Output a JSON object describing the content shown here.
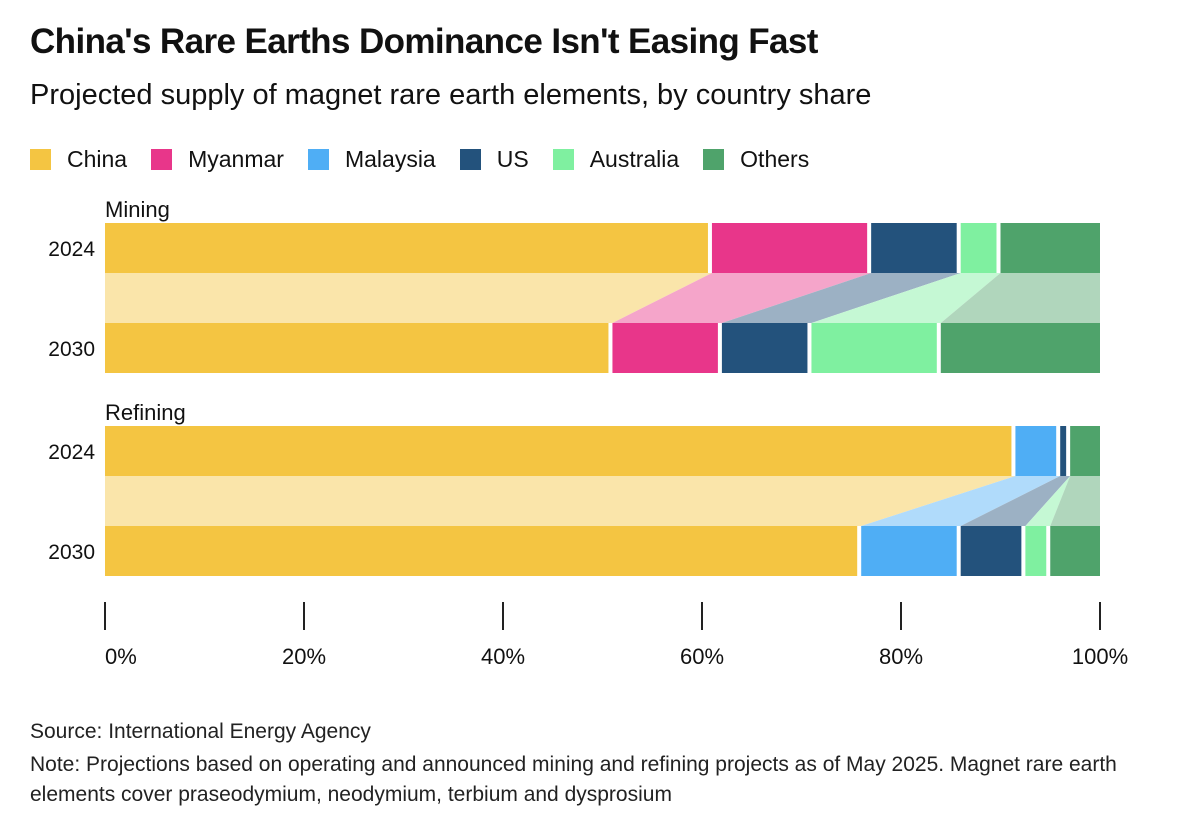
{
  "header": {
    "title": "China's Rare Earths Dominance Isn't Easing Fast",
    "subtitle": "Projected supply of magnet rare earth elements, by country share"
  },
  "legend": [
    {
      "label": "China",
      "color": "#F4C542"
    },
    {
      "label": "Myanmar",
      "color": "#E8368A"
    },
    {
      "label": "Malaysia",
      "color": "#4FAEF5"
    },
    {
      "label": "US",
      "color": "#23527C"
    },
    {
      "label": "Australia",
      "color": "#7FF0A0"
    },
    {
      "label": "Others",
      "color": "#4FA36B"
    }
  ],
  "chart_data": {
    "type": "bar",
    "orientation": "horizontal",
    "stacked": true,
    "unit": "%",
    "xlim": [
      0,
      100
    ],
    "xticks": [
      "0%",
      "20%",
      "40%",
      "60%",
      "80%",
      "100%"
    ],
    "series_names": [
      "China",
      "Myanmar",
      "Malaysia",
      "US",
      "Australia",
      "Others"
    ],
    "groups": [
      {
        "label": "Mining",
        "bars": [
          {
            "year": "2024",
            "values": [
              61,
              16,
              0,
              9,
              4,
              10
            ]
          },
          {
            "year": "2030",
            "values": [
              51,
              11,
              0,
              9,
              13,
              16
            ]
          }
        ]
      },
      {
        "label": "Refining",
        "bars": [
          {
            "year": "2024",
            "values": [
              91.5,
              0,
              4.5,
              1,
              0,
              3
            ]
          },
          {
            "year": "2030",
            "values": [
              76,
              0,
              10,
              6.5,
              2.5,
              5
            ]
          }
        ]
      }
    ]
  },
  "footer": {
    "source": "Source: International Energy Agency",
    "note": "Note: Projections based on operating and announced mining and refining projects as of May 2025. Magnet rare earth elements cover praseodymium, neodymium, terbium and dysprosium"
  }
}
